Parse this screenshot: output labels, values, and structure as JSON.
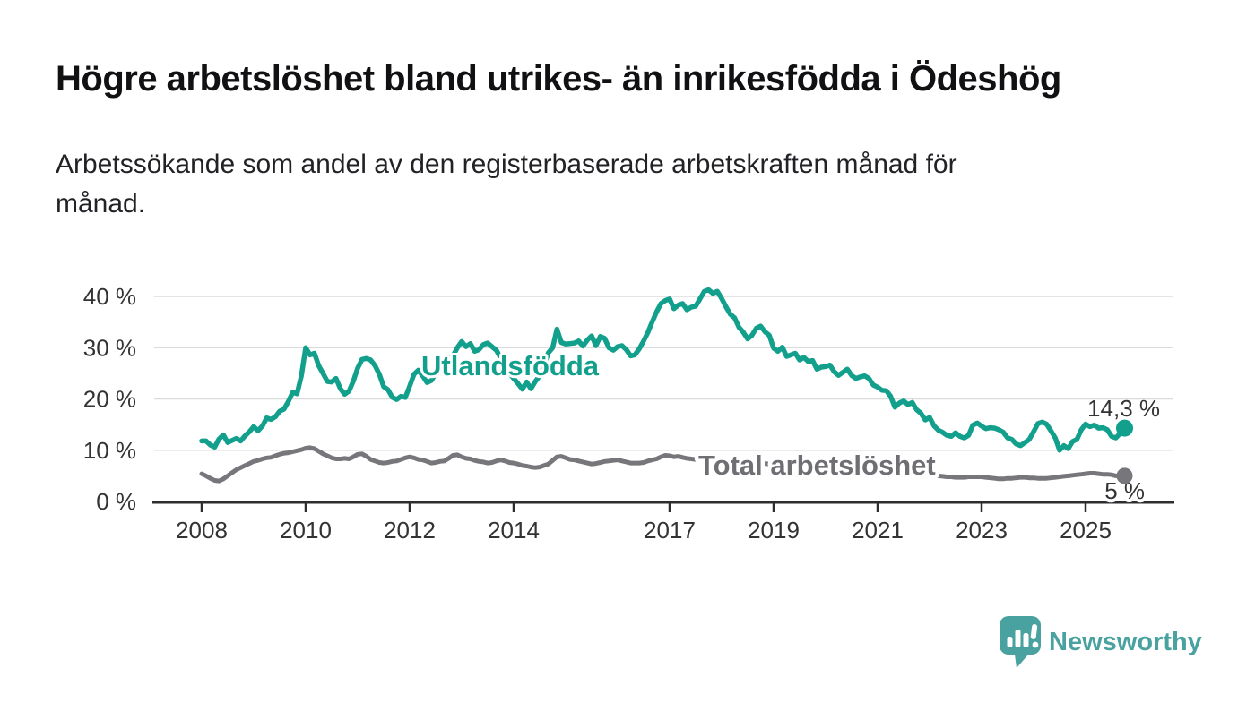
{
  "title": "Högre arbetslöshet bland utrikes- än inrikesfödda i Ödeshög",
  "subtitle": {
    "line1": "Arbetssökande som andel av den registerbaserade arbetskraften månad för",
    "line2": "månad."
  },
  "footer": {
    "brand": "Newsworthy",
    "logo_color": "#4aa2a0",
    "logo_icon": "speech-bubble-bar-chart-exclamation"
  },
  "colors": {
    "series_utlandsfodda": "#12a08c",
    "series_total": "#77777b",
    "series_total_label": "#6e6e73",
    "axis": "#2e2e31",
    "text": "#333336",
    "gridline": "#dbdbdb",
    "background": "#ffffff"
  },
  "chart_data": {
    "type": "line",
    "title": "Arbetssökande som andel av den registerbaserade arbetskraften månad för månad",
    "unit": "%",
    "grid": true,
    "x_start_year": 2008.0,
    "x_step_years": 0.08333,
    "x_end_year": 2025.75,
    "ylim": [
      0,
      44
    ],
    "y_ticks": [
      0,
      10,
      20,
      30,
      40
    ],
    "y_tick_labels": [
      "0 %",
      "10 %",
      "20 %",
      "30 %",
      "40 %"
    ],
    "x_ticks": [
      2008,
      2010,
      2012,
      2014,
      2017,
      2019,
      2021,
      2023,
      2025
    ],
    "x_tick_labels": [
      "2008",
      "2010",
      "2012",
      "2014",
      "2017",
      "2019",
      "2021",
      "2023",
      "2025"
    ],
    "legend_position": "inline-labels",
    "series": [
      {
        "name": "Utlandsfödda",
        "color": "#12a08c",
        "end_label": "14,3 %",
        "last_value": 14.3,
        "values": [
          11.8,
          11.8,
          11.0,
          10.6,
          12.2,
          13.0,
          11.5,
          11.9,
          12.3,
          11.8,
          12.8,
          13.6,
          14.6,
          13.8,
          14.7,
          16.3,
          16.0,
          16.5,
          17.6,
          18.0,
          19.5,
          21.3,
          21.0,
          24.5,
          30.0,
          28.6,
          28.9,
          26.5,
          25.0,
          23.4,
          23.3,
          24.0,
          22.0,
          20.9,
          21.5,
          23.5,
          26.0,
          27.7,
          27.9,
          27.6,
          26.5,
          24.8,
          22.4,
          21.8,
          20.3,
          19.9,
          20.5,
          20.3,
          22.5,
          24.8,
          25.6,
          24.5,
          23.2,
          23.6,
          25.0,
          26.0,
          27.2,
          28.0,
          28.4,
          30.0,
          31.2,
          30.2,
          30.8,
          29.3,
          29.6,
          30.6,
          30.9,
          30.2,
          29.5,
          28.0,
          26.5,
          25.0,
          24.0,
          23.0,
          21.9,
          23.3,
          22.0,
          23.4,
          24.5,
          26.5,
          29.0,
          30.0,
          33.6,
          31.0,
          30.7,
          30.8,
          30.9,
          31.3,
          30.3,
          31.5,
          32.3,
          30.4,
          32.2,
          31.8,
          30.0,
          29.5,
          30.2,
          30.4,
          29.6,
          28.4,
          28.6,
          29.8,
          31.3,
          33.0,
          35.1,
          37.0,
          38.6,
          39.2,
          39.5,
          37.6,
          38.3,
          38.6,
          37.4,
          37.9,
          38.1,
          39.5,
          41.0,
          41.3,
          40.6,
          41.0,
          39.6,
          38.0,
          36.5,
          35.8,
          34.0,
          33.0,
          31.7,
          32.4,
          33.8,
          34.2,
          33.1,
          32.4,
          29.9,
          29.3,
          30.1,
          28.3,
          28.6,
          28.9,
          27.6,
          28.1,
          27.3,
          27.5,
          25.8,
          26.2,
          26.3,
          26.6,
          25.3,
          24.6,
          25.2,
          25.8,
          24.6,
          24.0,
          24.3,
          24.5,
          24.0,
          22.7,
          22.3,
          21.7,
          21.6,
          20.5,
          18.4,
          19.2,
          19.6,
          18.9,
          19.3,
          17.9,
          17.2,
          15.9,
          16.4,
          14.8,
          13.9,
          13.5,
          12.9,
          12.7,
          13.4,
          12.7,
          12.4,
          12.9,
          14.9,
          15.3,
          14.7,
          14.2,
          14.4,
          14.3,
          14.0,
          13.5,
          12.4,
          12.1,
          11.2,
          10.9,
          11.5,
          12.1,
          13.6,
          15.2,
          15.5,
          15.1,
          13.8,
          12.4,
          10.0,
          10.9,
          10.3,
          11.7,
          12.1,
          14.0,
          15.1,
          14.6,
          14.9,
          14.3,
          14.4,
          14.0,
          12.7,
          12.4,
          13.3,
          14.3
        ]
      },
      {
        "name": "Total arbetslöshet",
        "color": "#77777b",
        "end_label": "5 %",
        "last_value": 5,
        "values": [
          5.4,
          5.0,
          4.5,
          4.1,
          4.0,
          4.4,
          5.0,
          5.6,
          6.2,
          6.6,
          7.0,
          7.4,
          7.8,
          8.0,
          8.3,
          8.5,
          8.6,
          8.9,
          9.2,
          9.4,
          9.5,
          9.7,
          9.9,
          10.1,
          10.4,
          10.5,
          10.3,
          9.8,
          9.3,
          8.9,
          8.5,
          8.3,
          8.3,
          8.4,
          8.3,
          8.7,
          9.2,
          9.3,
          8.8,
          8.2,
          7.9,
          7.6,
          7.5,
          7.6,
          7.8,
          7.9,
          8.2,
          8.5,
          8.7,
          8.5,
          8.2,
          8.1,
          7.8,
          7.5,
          7.6,
          7.8,
          7.9,
          8.4,
          9.0,
          9.1,
          8.7,
          8.4,
          8.3,
          8.0,
          7.8,
          7.7,
          7.5,
          7.6,
          7.9,
          8.1,
          7.9,
          7.6,
          7.5,
          7.3,
          7.0,
          6.9,
          6.7,
          6.6,
          6.7,
          7.0,
          7.3,
          8.0,
          8.7,
          8.8,
          8.5,
          8.2,
          8.1,
          7.9,
          7.7,
          7.5,
          7.3,
          7.4,
          7.6,
          7.8,
          7.9,
          8.0,
          8.1,
          7.9,
          7.7,
          7.5,
          7.5,
          7.5,
          7.6,
          7.9,
          8.1,
          8.3,
          8.7,
          9.0,
          8.9,
          8.7,
          8.8,
          8.6,
          8.4,
          8.3,
          8.2,
          8.1,
          8.1,
          8.0,
          8.0,
          7.9,
          7.9,
          7.8,
          7.8,
          7.7,
          7.7,
          7.6,
          7.6,
          7.5,
          7.5,
          7.4,
          7.4,
          7.3,
          7.3,
          7.2,
          7.1,
          7.0,
          6.9,
          6.9,
          6.8,
          6.8,
          6.7,
          6.7,
          6.8,
          6.8,
          6.9,
          7.0,
          7.2,
          7.4,
          7.5,
          7.6,
          7.6,
          7.5,
          7.5,
          7.4,
          7.2,
          7.1,
          7.0,
          6.9,
          6.7,
          6.6,
          6.4,
          6.3,
          6.1,
          6.0,
          5.9,
          5.8,
          5.6,
          5.5,
          5.4,
          5.2,
          5.0,
          4.9,
          4.8,
          4.8,
          4.7,
          4.7,
          4.7,
          4.8,
          4.8,
          4.8,
          4.8,
          4.7,
          4.6,
          4.5,
          4.4,
          4.4,
          4.5,
          4.5,
          4.6,
          4.7,
          4.7,
          4.6,
          4.6,
          4.5,
          4.5,
          4.5,
          4.6,
          4.7,
          4.8,
          4.9,
          5.0,
          5.1,
          5.2,
          5.3,
          5.4,
          5.5,
          5.5,
          5.4,
          5.3,
          5.3,
          5.2,
          5.0,
          4.9,
          5.0
        ]
      }
    ]
  }
}
